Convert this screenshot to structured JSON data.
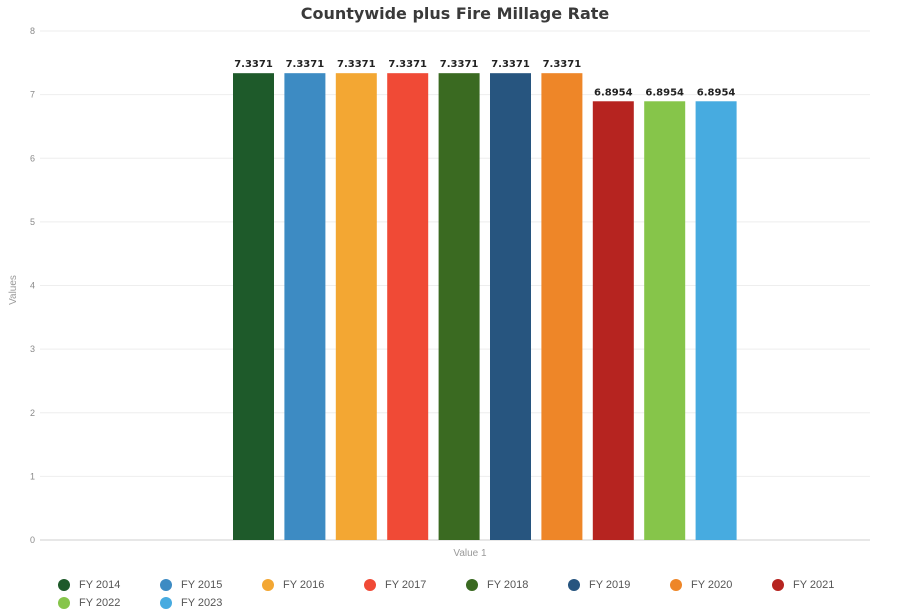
{
  "chart_data": {
    "type": "bar",
    "title": "Countywide plus Fire Millage Rate",
    "xlabel": "Value 1",
    "ylabel": "Values",
    "ylim": [
      0,
      8
    ],
    "yticks": [
      "0",
      "1",
      "2",
      "3",
      "4",
      "5",
      "6",
      "7",
      "8"
    ],
    "grid": true,
    "legend_position": "bottom",
    "categories": [
      "Value 1"
    ],
    "series": [
      {
        "name": "FY 2014",
        "value": 7.3371,
        "label": "7.3371",
        "color": "#1e5a2a"
      },
      {
        "name": "FY 2015",
        "value": 7.3371,
        "label": "7.3371",
        "color": "#3d8bc3"
      },
      {
        "name": "FY 2016",
        "value": 7.3371,
        "label": "7.3371",
        "color": "#f3a733"
      },
      {
        "name": "FY 2017",
        "value": 7.3371,
        "label": "7.3371",
        "color": "#f04a36"
      },
      {
        "name": "FY 2018",
        "value": 7.3371,
        "label": "7.3371",
        "color": "#3a6a21"
      },
      {
        "name": "FY 2019",
        "value": 7.3371,
        "label": "7.3371",
        "color": "#27557f"
      },
      {
        "name": "FY 2020",
        "value": 7.3371,
        "label": "7.3371",
        "color": "#ee8628"
      },
      {
        "name": "FY 2021",
        "value": 6.8954,
        "label": "6.8954",
        "color": "#b62420"
      },
      {
        "name": "FY 2022",
        "value": 6.8954,
        "label": "6.8954",
        "color": "#86c54a"
      },
      {
        "name": "FY 2023",
        "value": 6.8954,
        "label": "6.8954",
        "color": "#47abe0"
      }
    ]
  }
}
